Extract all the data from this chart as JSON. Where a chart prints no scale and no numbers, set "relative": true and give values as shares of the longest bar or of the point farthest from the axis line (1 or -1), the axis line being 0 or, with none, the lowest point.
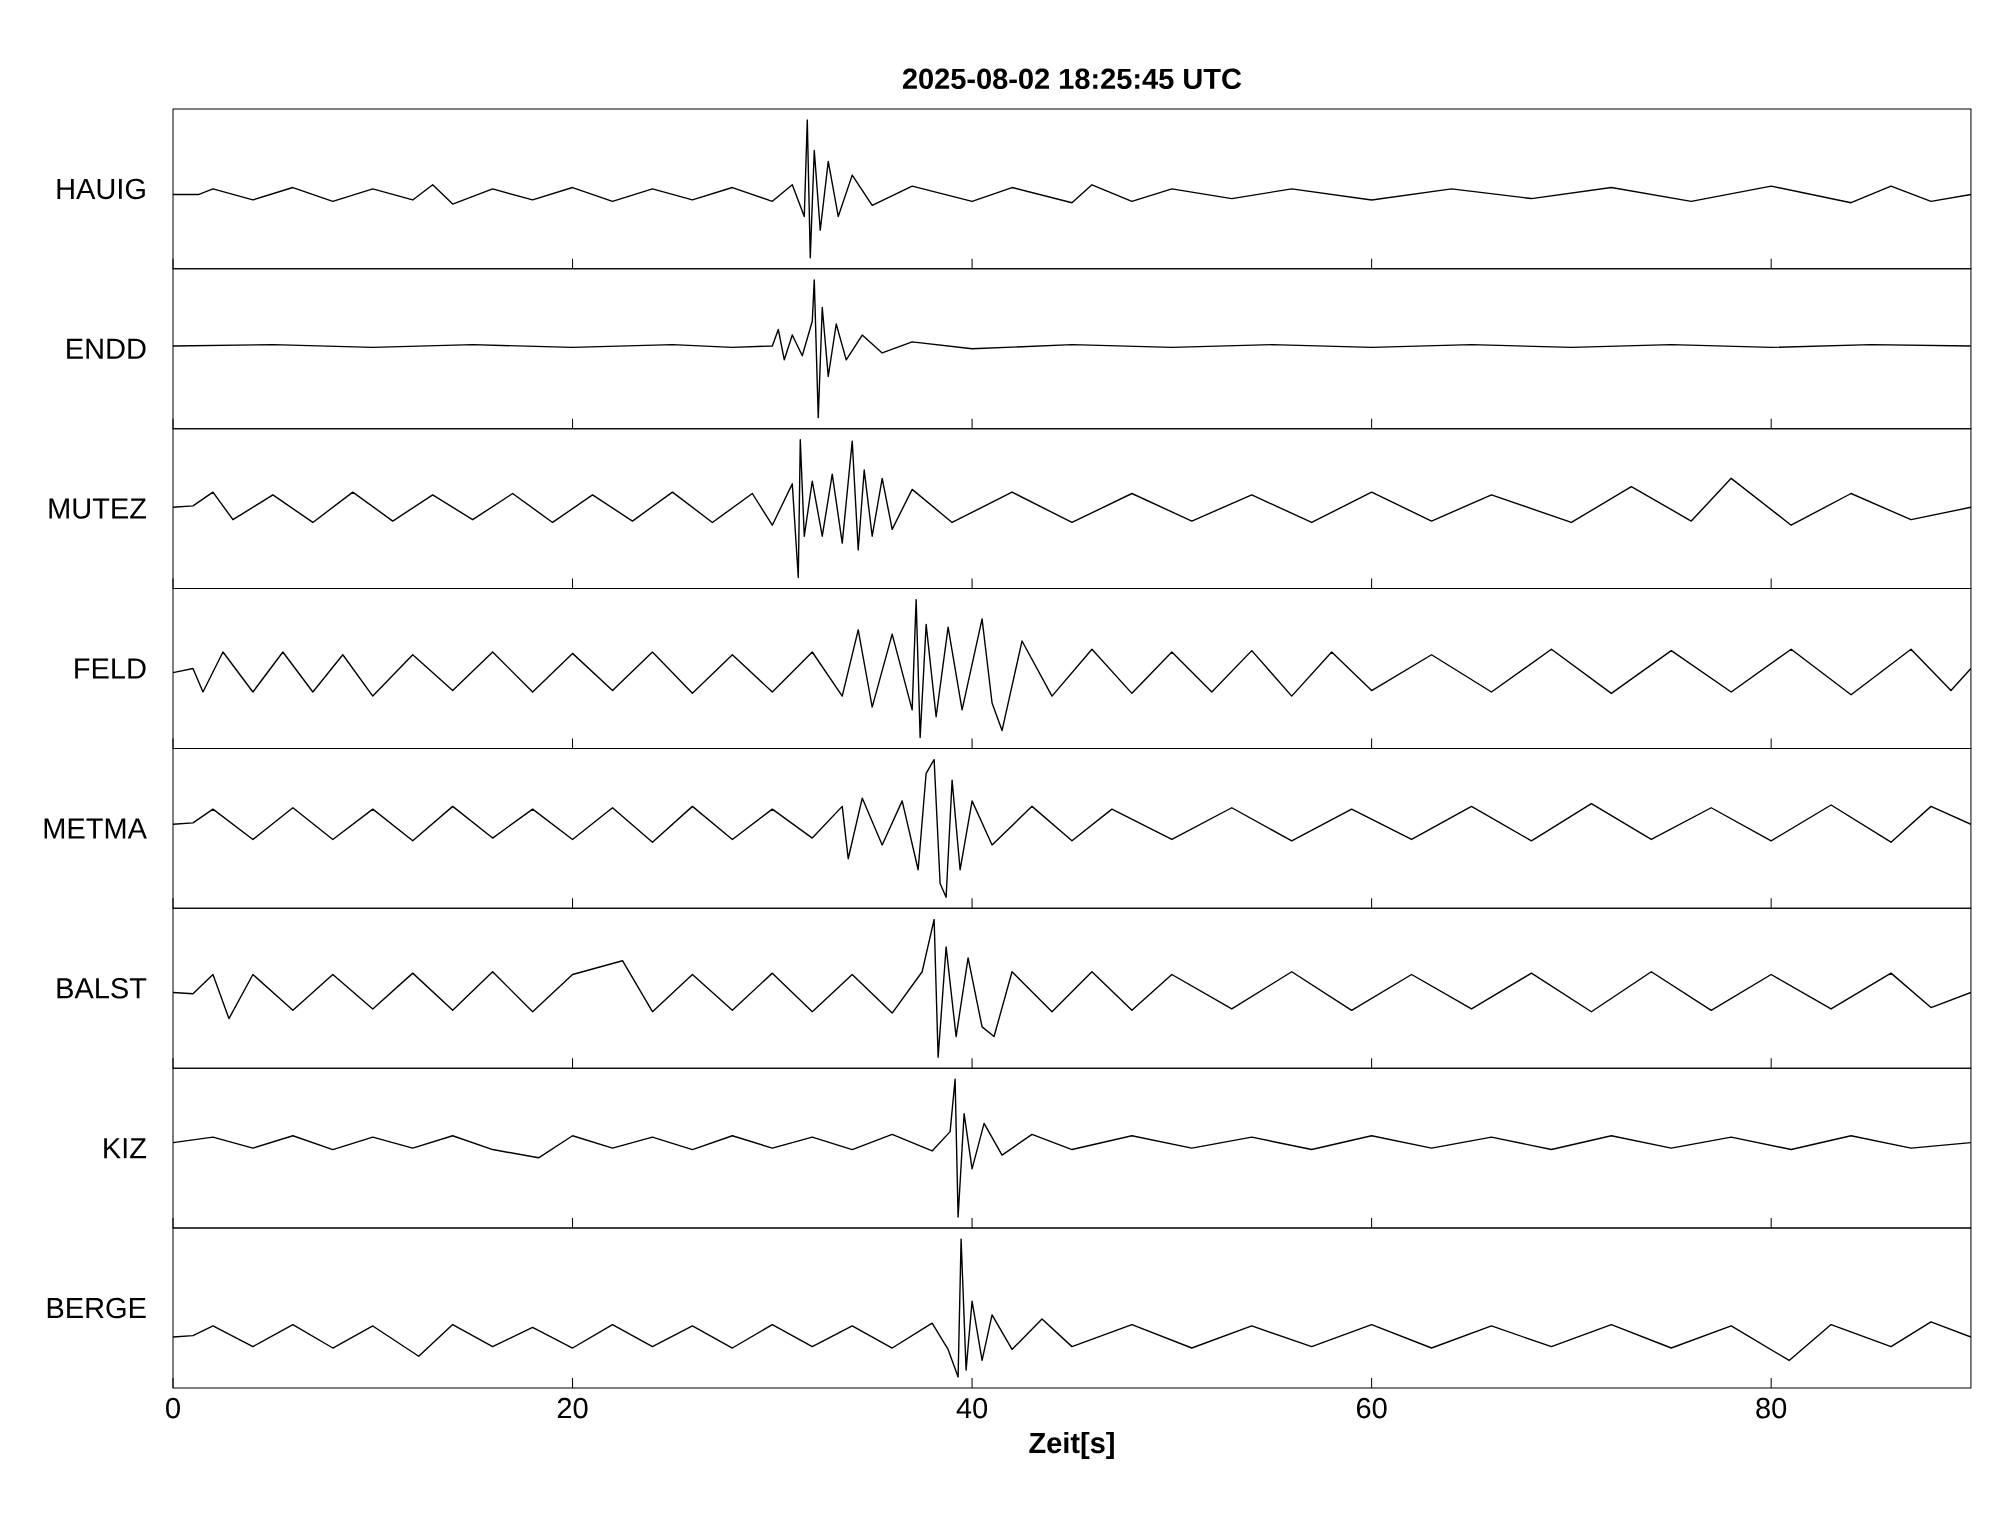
{
  "chart_data": [
    {
      "type": "line",
      "relative": true,
      "title": "2025-08-02  18:25:45 UTC",
      "ylabel": "HAUIG",
      "color": "#000000",
      "xlim": [
        0,
        90
      ],
      "xticks": [
        0,
        20,
        40,
        60,
        80
      ],
      "tick_labels": false,
      "x": [
        0,
        1.3,
        2,
        4,
        6,
        8,
        10,
        12,
        13,
        14,
        16,
        18,
        20,
        22,
        24,
        26,
        28,
        30,
        31,
        31.6,
        31.75,
        31.9,
        32.1,
        32.4,
        32.8,
        33.3,
        34,
        35,
        37,
        40,
        42,
        45,
        46,
        48,
        50,
        53,
        56,
        60,
        64,
        68,
        72,
        76,
        80,
        84,
        86,
        88,
        90
      ],
      "values": [
        0.46,
        0.46,
        0.5,
        0.42,
        0.51,
        0.41,
        0.5,
        0.42,
        0.53,
        0.39,
        0.5,
        0.42,
        0.51,
        0.41,
        0.5,
        0.42,
        0.51,
        0.41,
        0.53,
        0.3,
        1.0,
        0,
        0.78,
        0.2,
        0.7,
        0.3,
        0.6,
        0.38,
        0.52,
        0.41,
        0.51,
        0.4,
        0.53,
        0.41,
        0.5,
        0.43,
        0.5,
        0.42,
        0.5,
        0.43,
        0.51,
        0.41,
        0.52,
        0.4,
        0.52,
        0.41,
        0.46
      ]
    },
    {
      "type": "line",
      "relative": true,
      "ylabel": "ENDD",
      "color": "#000000",
      "xlim": [
        0,
        90
      ],
      "xticks": [
        0,
        20,
        40,
        60,
        80
      ],
      "tick_labels": false,
      "x": [
        0,
        5,
        10,
        15,
        20,
        25,
        28,
        30,
        30.3,
        30.6,
        31,
        31.5,
        32,
        32.1,
        32.3,
        32.5,
        32.8,
        33.2,
        33.7,
        34.5,
        35.5,
        37,
        40,
        45,
        50,
        55,
        60,
        65,
        70,
        75,
        80,
        85,
        90
      ],
      "values": [
        0.52,
        0.53,
        0.51,
        0.53,
        0.51,
        0.53,
        0.51,
        0.52,
        0.64,
        0.42,
        0.6,
        0.45,
        0.7,
        1.0,
        0,
        0.8,
        0.3,
        0.68,
        0.42,
        0.6,
        0.47,
        0.55,
        0.5,
        0.53,
        0.51,
        0.53,
        0.51,
        0.53,
        0.51,
        0.53,
        0.51,
        0.53,
        0.52
      ]
    },
    {
      "type": "line",
      "relative": true,
      "ylabel": "MUTEZ",
      "color": "#000000",
      "xlim": [
        0,
        90
      ],
      "xticks": [
        0,
        20,
        40,
        60,
        80
      ],
      "tick_labels": false,
      "x": [
        0,
        1,
        2,
        3,
        5,
        7,
        9,
        11,
        13,
        15,
        17,
        19,
        21,
        23,
        25,
        27,
        29,
        30,
        31,
        31.3,
        31.4,
        31.6,
        32,
        32.5,
        33,
        33.5,
        34,
        34.3,
        34.6,
        35,
        35.5,
        36,
        37,
        39,
        42,
        45,
        48,
        51,
        54,
        57,
        60,
        63,
        66,
        70,
        73,
        76,
        78,
        81,
        84,
        87,
        90
      ],
      "values": [
        0.51,
        0.52,
        0.62,
        0.42,
        0.6,
        0.4,
        0.62,
        0.41,
        0.6,
        0.42,
        0.61,
        0.4,
        0.6,
        0.41,
        0.62,
        0.4,
        0.61,
        0.38,
        0.68,
        0,
        1.0,
        0.3,
        0.7,
        0.3,
        0.75,
        0.25,
        0.99,
        0.2,
        0.78,
        0.3,
        0.72,
        0.35,
        0.64,
        0.4,
        0.62,
        0.4,
        0.61,
        0.41,
        0.6,
        0.4,
        0.62,
        0.41,
        0.6,
        0.4,
        0.66,
        0.41,
        0.72,
        0.38,
        0.61,
        0.42,
        0.51
      ]
    },
    {
      "type": "line",
      "relative": true,
      "ylabel": "FELD",
      "color": "#000000",
      "xlim": [
        0,
        90
      ],
      "xticks": [
        0,
        20,
        40,
        60,
        80
      ],
      "tick_labels": false,
      "x": [
        0,
        1,
        1.5,
        2.5,
        4,
        5.5,
        7,
        8.5,
        10,
        12,
        14,
        16,
        18,
        20,
        22,
        24,
        26,
        28,
        30,
        32,
        33.5,
        34.3,
        35,
        36,
        37,
        37.2,
        37.4,
        37.7,
        38.2,
        38.8,
        39.5,
        40.5,
        41,
        41.5,
        42.5,
        44,
        46,
        48,
        50,
        52,
        54,
        56,
        58,
        60,
        63,
        66,
        69,
        72,
        75,
        78,
        81,
        84,
        87,
        89,
        90
      ],
      "values": [
        0.47,
        0.5,
        0.33,
        0.62,
        0.33,
        0.62,
        0.33,
        0.6,
        0.3,
        0.6,
        0.34,
        0.62,
        0.33,
        0.61,
        0.34,
        0.62,
        0.32,
        0.6,
        0.33,
        0.62,
        0.3,
        0.78,
        0.22,
        0.75,
        0.2,
        1.0,
        0,
        0.82,
        0.15,
        0.8,
        0.2,
        0.86,
        0.25,
        0.05,
        0.7,
        0.3,
        0.64,
        0.32,
        0.62,
        0.33,
        0.63,
        0.3,
        0.62,
        0.34,
        0.6,
        0.33,
        0.64,
        0.32,
        0.63,
        0.33,
        0.64,
        0.31,
        0.64,
        0.34,
        0.5
      ]
    },
    {
      "type": "line",
      "relative": true,
      "ylabel": "METMA",
      "color": "#000000",
      "xlim": [
        0,
        90
      ],
      "xticks": [
        0,
        20,
        40,
        60,
        80
      ],
      "tick_labels": false,
      "x": [
        0,
        1,
        2,
        4,
        6,
        8,
        10,
        12,
        14,
        16,
        18,
        20,
        22,
        24,
        26,
        28,
        30,
        32,
        33.5,
        33.8,
        34.5,
        35.5,
        36.5,
        37.3,
        37.7,
        38.1,
        38.4,
        38.7,
        39,
        39.4,
        40,
        41,
        43,
        45,
        47,
        50,
        53,
        56,
        59,
        62,
        65,
        68,
        71,
        74,
        77,
        80,
        83,
        86,
        88,
        90
      ],
      "values": [
        0.53,
        0.54,
        0.64,
        0.42,
        0.65,
        0.42,
        0.64,
        0.41,
        0.66,
        0.43,
        0.64,
        0.42,
        0.65,
        0.4,
        0.66,
        0.42,
        0.64,
        0.43,
        0.66,
        0.28,
        0.72,
        0.38,
        0.7,
        0.2,
        0.9,
        1.0,
        0.1,
        0,
        0.85,
        0.2,
        0.7,
        0.38,
        0.66,
        0.41,
        0.64,
        0.42,
        0.65,
        0.41,
        0.64,
        0.42,
        0.66,
        0.41,
        0.68,
        0.42,
        0.65,
        0.41,
        0.67,
        0.4,
        0.66,
        0.53
      ]
    },
    {
      "type": "line",
      "relative": true,
      "ylabel": "BALST",
      "color": "#000000",
      "xlim": [
        0,
        90
      ],
      "xticks": [
        0,
        20,
        40,
        60,
        80
      ],
      "tick_labels": false,
      "x": [
        0,
        1,
        2,
        2.8,
        4,
        6,
        8,
        10,
        12,
        14,
        16,
        18,
        20,
        22.5,
        24,
        26,
        28,
        30,
        32,
        34,
        36,
        37.5,
        38.1,
        38.3,
        38.7,
        39.2,
        39.8,
        40.5,
        41.1,
        42,
        44,
        46,
        48,
        50,
        53,
        56,
        59,
        62,
        65,
        68,
        71,
        74,
        77,
        80,
        83,
        86,
        88,
        90
      ],
      "values": [
        0.47,
        0.46,
        0.6,
        0.28,
        0.6,
        0.34,
        0.6,
        0.35,
        0.61,
        0.34,
        0.62,
        0.33,
        0.6,
        0.7,
        0.33,
        0.6,
        0.34,
        0.61,
        0.33,
        0.6,
        0.32,
        0.62,
        1.0,
        0,
        0.8,
        0.15,
        0.72,
        0.22,
        0.15,
        0.62,
        0.33,
        0.62,
        0.34,
        0.6,
        0.35,
        0.62,
        0.34,
        0.6,
        0.35,
        0.61,
        0.33,
        0.62,
        0.34,
        0.6,
        0.35,
        0.61,
        0.36,
        0.47
      ]
    },
    {
      "type": "line",
      "relative": true,
      "ylabel": "KIZ",
      "color": "#000000",
      "xlim": [
        0,
        90
      ],
      "xticks": [
        0,
        20,
        40,
        60,
        80
      ],
      "tick_labels": false,
      "x": [
        0,
        2,
        4,
        6,
        8,
        10,
        12,
        14,
        16,
        18.3,
        20,
        22,
        24,
        26,
        28,
        30,
        32,
        34,
        36,
        38,
        38.9,
        39.15,
        39.3,
        39.6,
        40,
        40.6,
        41.5,
        43,
        45,
        48,
        51,
        54,
        57,
        60,
        63,
        66,
        69,
        72,
        75,
        78,
        81,
        84,
        87,
        90
      ],
      "values": [
        0.54,
        0.58,
        0.5,
        0.59,
        0.49,
        0.58,
        0.5,
        0.59,
        0.49,
        0.43,
        0.59,
        0.5,
        0.58,
        0.49,
        0.59,
        0.5,
        0.58,
        0.49,
        0.6,
        0.48,
        0.62,
        1.0,
        0,
        0.75,
        0.35,
        0.68,
        0.45,
        0.6,
        0.49,
        0.59,
        0.5,
        0.58,
        0.49,
        0.59,
        0.5,
        0.58,
        0.49,
        0.59,
        0.5,
        0.58,
        0.49,
        0.59,
        0.5,
        0.54
      ]
    },
    {
      "type": "line",
      "relative": true,
      "ylabel": "BERGE",
      "xlabel": "Zeit[s]",
      "color": "#000000",
      "xlim": [
        0,
        90
      ],
      "xticks": [
        0,
        20,
        40,
        60,
        80
      ],
      "tick_labels": "x",
      "x": [
        0,
        1,
        2,
        4,
        6,
        8,
        10,
        12.3,
        14,
        16,
        18,
        20,
        22,
        24,
        26,
        28,
        30,
        32,
        34,
        36,
        38,
        38.8,
        39.3,
        39.45,
        39.7,
        40,
        40.5,
        41,
        42,
        43.5,
        45,
        48,
        51,
        54,
        57,
        60,
        63,
        66,
        69,
        72,
        75,
        78,
        80.9,
        83,
        86,
        88,
        90
      ],
      "values": [
        0.29,
        0.3,
        0.37,
        0.22,
        0.38,
        0.21,
        0.37,
        0.15,
        0.38,
        0.22,
        0.36,
        0.21,
        0.38,
        0.22,
        0.37,
        0.21,
        0.38,
        0.22,
        0.37,
        0.21,
        0.39,
        0.2,
        0,
        1.0,
        0.05,
        0.55,
        0.12,
        0.45,
        0.2,
        0.42,
        0.22,
        0.38,
        0.21,
        0.37,
        0.22,
        0.38,
        0.21,
        0.37,
        0.22,
        0.38,
        0.21,
        0.37,
        0.12,
        0.38,
        0.22,
        0.4,
        0.29
      ]
    }
  ]
}
